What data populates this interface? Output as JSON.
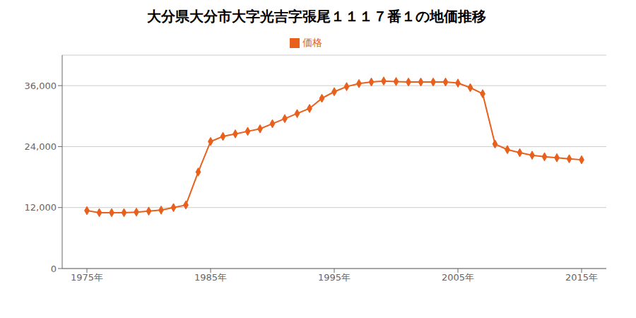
{
  "chart_data": {
    "type": "line",
    "title": "大分県大分市大字光吉字張尾１１１７番１の地価推移",
    "x": [
      1975,
      1976,
      1977,
      1978,
      1979,
      1980,
      1981,
      1982,
      1983,
      1984,
      1985,
      1986,
      1987,
      1988,
      1989,
      1990,
      1991,
      1992,
      1993,
      1994,
      1995,
      1996,
      1997,
      1998,
      1999,
      2000,
      2001,
      2002,
      2003,
      2004,
      2005,
      2006,
      2007,
      2008,
      2009,
      2010,
      2011,
      2012,
      2013,
      2014,
      2015
    ],
    "series": [
      {
        "name": "価格",
        "color": "#e8601c",
        "marker": "diamond",
        "values": [
          11400,
          11000,
          11000,
          11000,
          11100,
          11300,
          11500,
          12000,
          12500,
          19000,
          25000,
          26000,
          26500,
          27000,
          27500,
          28500,
          29500,
          30500,
          31500,
          33500,
          34800,
          35800,
          36400,
          36700,
          36900,
          36800,
          36700,
          36700,
          36700,
          36700,
          36500,
          35600,
          34400,
          24500,
          23400,
          22800,
          22300,
          22000,
          21800,
          21600,
          21400
        ]
      }
    ],
    "xlim": [
      1973,
      2017
    ],
    "xticks": [
      {
        "value": 1975,
        "label": "1975年"
      },
      {
        "value": 1985,
        "label": "1985年"
      },
      {
        "value": 1995,
        "label": "1995年"
      },
      {
        "value": 2005,
        "label": "2005年"
      },
      {
        "value": 2015,
        "label": "2015年"
      }
    ],
    "ylim": [
      0,
      42000
    ],
    "yticks": [
      0,
      {
        "value": 12000,
        "label": "12,000"
      },
      {
        "value": 24000,
        "label": "24,000"
      },
      {
        "value": 36000,
        "label": "36,000"
      }
    ],
    "grid": true,
    "legend": "top"
  }
}
